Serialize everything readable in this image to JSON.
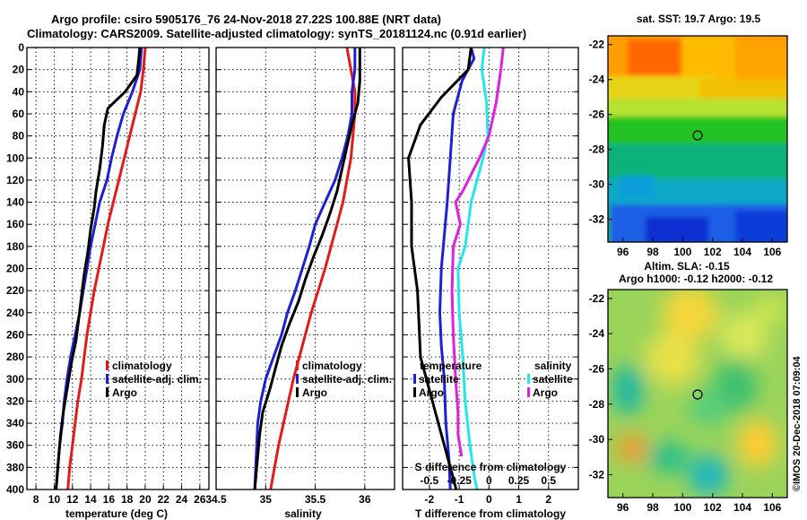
{
  "header": {
    "title_line1": "Argo profile: csiro 5905176_76 24-Nov-2018 27.22S 100.88E (NRT data)",
    "title_line2": "Climatology: CARS2009. Satellite-adjusted climatology: synTS_20181124.nc (0.91d earlier)"
  },
  "colors": {
    "climatology": "#e41a1c",
    "satellite": "#1f1fd6",
    "argo": "#000000",
    "satellite_salinity": "#22e6ee",
    "argo_salinity": "#dd22dd"
  },
  "depth_ticks": [
    "0",
    "20",
    "40",
    "60",
    "80",
    "100",
    "120",
    "140",
    "160",
    "180",
    "200",
    "220",
    "240",
    "260",
    "280",
    "300",
    "320",
    "340",
    "360",
    "380",
    "400"
  ],
  "chart_data": [
    {
      "type": "line",
      "name": "temperature-profile",
      "xlabel": "temperature (deg C)",
      "ylabel": "depth",
      "xlim": [
        7,
        27
      ],
      "ylim": [
        400,
        0
      ],
      "xticks": [
        8,
        10,
        12,
        14,
        16,
        18,
        20,
        22,
        24,
        26
      ],
      "xtick_labels": [
        "8",
        "10",
        "12",
        "14",
        "16",
        "18",
        "20",
        "22",
        "24",
        "26"
      ],
      "legend": [
        "climatology",
        "satellite-adj. clim.",
        "Argo"
      ],
      "series": [
        {
          "name": "climatology",
          "color": "#e41a1c",
          "points": [
            [
              20.0,
              0
            ],
            [
              19.8,
              20
            ],
            [
              19.5,
              40
            ],
            [
              18.9,
              60
            ],
            [
              18.3,
              80
            ],
            [
              17.7,
              100
            ],
            [
              17.1,
              120
            ],
            [
              16.5,
              140
            ],
            [
              15.9,
              160
            ],
            [
              15.4,
              180
            ],
            [
              14.9,
              200
            ],
            [
              14.4,
              220
            ],
            [
              14.0,
              240
            ],
            [
              13.6,
              260
            ],
            [
              13.3,
              280
            ],
            [
              13.0,
              300
            ],
            [
              12.6,
              320
            ],
            [
              12.3,
              340
            ],
            [
              12.0,
              360
            ],
            [
              11.7,
              380
            ],
            [
              11.5,
              400
            ]
          ]
        },
        {
          "name": "satellite-adj. clim.",
          "color": "#1f1fd6",
          "points": [
            [
              19.6,
              0
            ],
            [
              19.4,
              20
            ],
            [
              18.6,
              40
            ],
            [
              17.6,
              60
            ],
            [
              16.9,
              80
            ],
            [
              16.3,
              100
            ],
            [
              15.8,
              120
            ],
            [
              15.0,
              140
            ],
            [
              14.5,
              160
            ],
            [
              14.0,
              180
            ],
            [
              13.6,
              200
            ],
            [
              13.2,
              220
            ],
            [
              12.8,
              240
            ],
            [
              12.3,
              260
            ],
            [
              11.8,
              280
            ],
            [
              11.4,
              300
            ],
            [
              11.1,
              320
            ],
            [
              10.9,
              340
            ],
            [
              10.6,
              360
            ],
            [
              10.4,
              380
            ],
            [
              10.2,
              400
            ]
          ]
        },
        {
          "name": "Argo",
          "color": "#000000",
          "points": [
            [
              19.4,
              0
            ],
            [
              19.3,
              10
            ],
            [
              19.1,
              25
            ],
            [
              17.8,
              40
            ],
            [
              15.9,
              55
            ],
            [
              15.5,
              70
            ],
            [
              15.3,
              90
            ],
            [
              15.0,
              110
            ],
            [
              14.6,
              130
            ],
            [
              14.4,
              145
            ],
            [
              14.0,
              165
            ],
            [
              13.7,
              185
            ],
            [
              13.3,
              205
            ],
            [
              13.0,
              225
            ],
            [
              12.7,
              245
            ],
            [
              12.4,
              265
            ],
            [
              11.9,
              285
            ],
            [
              11.5,
              305
            ],
            [
              11.0,
              330
            ],
            [
              10.7,
              350
            ],
            [
              10.5,
              370
            ],
            [
              10.3,
              390
            ],
            [
              10.2,
              400
            ]
          ]
        }
      ]
    },
    {
      "type": "line",
      "name": "salinity-profile",
      "xlabel": "salinity",
      "ylabel": "depth",
      "xlim": [
        34.5,
        36.3
      ],
      "ylim": [
        400,
        0
      ],
      "xticks": [
        34.5,
        35,
        35.5,
        36
      ],
      "xtick_labels": [
        "34.5",
        "35",
        "35.5",
        "36"
      ],
      "legend": [
        "climatology",
        "satellite-adj. clim.",
        "Argo"
      ],
      "series": [
        {
          "name": "climatology",
          "color": "#e41a1c",
          "points": [
            [
              35.82,
              0
            ],
            [
              35.86,
              20
            ],
            [
              35.9,
              40
            ],
            [
              35.9,
              60
            ],
            [
              35.88,
              80
            ],
            [
              35.86,
              100
            ],
            [
              35.82,
              120
            ],
            [
              35.78,
              140
            ],
            [
              35.72,
              160
            ],
            [
              35.66,
              180
            ],
            [
              35.6,
              200
            ],
            [
              35.53,
              220
            ],
            [
              35.46,
              240
            ],
            [
              35.4,
              260
            ],
            [
              35.34,
              280
            ],
            [
              35.28,
              300
            ],
            [
              35.23,
              320
            ],
            [
              35.18,
              340
            ],
            [
              35.13,
              360
            ],
            [
              35.09,
              380
            ],
            [
              35.05,
              400
            ]
          ]
        },
        {
          "name": "satellite-adj. clim.",
          "color": "#1f1fd6",
          "points": [
            [
              35.9,
              0
            ],
            [
              35.9,
              20
            ],
            [
              35.87,
              40
            ],
            [
              35.87,
              60
            ],
            [
              35.83,
              80
            ],
            [
              35.77,
              100
            ],
            [
              35.7,
              120
            ],
            [
              35.6,
              140
            ],
            [
              35.5,
              160
            ],
            [
              35.44,
              180
            ],
            [
              35.37,
              200
            ],
            [
              35.3,
              220
            ],
            [
              35.22,
              240
            ],
            [
              35.16,
              260
            ],
            [
              35.08,
              280
            ],
            [
              35.0,
              300
            ],
            [
              34.95,
              320
            ],
            [
              34.92,
              340
            ],
            [
              34.91,
              360
            ],
            [
              34.9,
              380
            ],
            [
              34.89,
              400
            ]
          ]
        },
        {
          "name": "Argo",
          "color": "#000000",
          "points": [
            [
              35.95,
              0
            ],
            [
              35.95,
              30
            ],
            [
              35.93,
              50
            ],
            [
              35.87,
              70
            ],
            [
              35.82,
              90
            ],
            [
              35.77,
              110
            ],
            [
              35.72,
              130
            ],
            [
              35.65,
              150
            ],
            [
              35.57,
              170
            ],
            [
              35.48,
              190
            ],
            [
              35.4,
              210
            ],
            [
              35.33,
              230
            ],
            [
              35.24,
              250
            ],
            [
              35.16,
              270
            ],
            [
              35.1,
              290
            ],
            [
              35.04,
              310
            ],
            [
              34.97,
              330
            ],
            [
              34.94,
              350
            ],
            [
              34.92,
              370
            ],
            [
              34.9,
              390
            ],
            [
              34.89,
              400
            ]
          ]
        }
      ]
    },
    {
      "type": "line",
      "name": "difference-profile",
      "xlabel": "T difference from climatology",
      "xlabel_top": "S difference from climatology",
      "xlim": [
        -2.9,
        3.0
      ],
      "ylim": [
        400,
        0
      ],
      "xticks": [
        -2,
        -1,
        0,
        1,
        2
      ],
      "xtick_labels": [
        "-2",
        "-1",
        "0",
        "1",
        "2"
      ],
      "xticks_top": [
        -0.5,
        -0.25,
        0,
        0.25,
        0.5
      ],
      "xtick_labels_top": [
        "-0.5",
        "-0.25",
        "0",
        "0.25",
        "0.5"
      ],
      "legend": {
        "temperature_heading": "temperature",
        "salinity_heading": "salinity",
        "satellite": "satellite",
        "argo": "Argo"
      },
      "series": [
        {
          "name": "temperature satellite",
          "color": "#1f1fd6",
          "points": [
            [
              -0.6,
              0
            ],
            [
              -0.5,
              10
            ],
            [
              -0.9,
              30
            ],
            [
              -1.2,
              60
            ],
            [
              -1.3,
              100
            ],
            [
              -1.4,
              140
            ],
            [
              -1.5,
              170
            ],
            [
              -1.6,
              200
            ],
            [
              -1.65,
              240
            ],
            [
              -1.6,
              270
            ],
            [
              -1.5,
              300
            ],
            [
              -1.45,
              340
            ],
            [
              -1.35,
              370
            ],
            [
              -1.3,
              400
            ]
          ]
        },
        {
          "name": "temperature Argo",
          "color": "#000000",
          "points": [
            [
              -0.6,
              0
            ],
            [
              -0.7,
              20
            ],
            [
              -1.6,
              45
            ],
            [
              -2.3,
              70
            ],
            [
              -2.7,
              100
            ],
            [
              -2.6,
              140
            ],
            [
              -2.6,
              180
            ],
            [
              -2.4,
              220
            ],
            [
              -2.35,
              250
            ],
            [
              -2.3,
              280
            ],
            [
              -2.1,
              300
            ],
            [
              -1.9,
              320
            ],
            [
              -1.6,
              350
            ],
            [
              -1.3,
              380
            ],
            [
              -1.1,
              400
            ]
          ]
        },
        {
          "name": "salinity satellite",
          "color": "#22e6ee",
          "points": [
            [
              -0.04,
              0
            ],
            [
              -0.06,
              20
            ],
            [
              -0.02,
              50
            ],
            [
              -0.01,
              80
            ],
            [
              -0.05,
              100
            ],
            [
              -0.15,
              140
            ],
            [
              -0.2,
              180
            ],
            [
              -0.26,
              200
            ],
            [
              -0.25,
              240
            ],
            [
              -0.22,
              280
            ],
            [
              -0.2,
              320
            ],
            [
              -0.16,
              360
            ],
            [
              -0.12,
              390
            ],
            [
              -0.1,
              400
            ]
          ]
        },
        {
          "name": "salinity Argo",
          "color": "#dd22dd",
          "points": [
            [
              0.12,
              0
            ],
            [
              0.1,
              20
            ],
            [
              0.06,
              50
            ],
            [
              0.0,
              80
            ],
            [
              -0.08,
              100
            ],
            [
              -0.22,
              130
            ],
            [
              -0.28,
              140
            ],
            [
              -0.24,
              160
            ],
            [
              -0.3,
              180
            ],
            [
              -0.31,
              220
            ],
            [
              -0.3,
              260
            ],
            [
              -0.28,
              300
            ],
            [
              -0.26,
              330
            ],
            [
              -0.26,
              350
            ],
            [
              -0.23,
              370
            ]
          ]
        }
      ]
    },
    {
      "type": "heatmap",
      "name": "sst-map",
      "title": "sat. SST: 19.7 Argo: 19.5",
      "xticks": [
        "96",
        "98",
        "100",
        "102",
        "104",
        "106"
      ],
      "yticks": [
        "-22",
        "-24",
        "-26",
        "-28",
        "-30",
        "-32"
      ],
      "marker": [
        100.88,
        -27.22
      ]
    },
    {
      "type": "heatmap",
      "name": "sla-map",
      "title_line1": "Altim. SLA: -0.15",
      "title_line2": "Argo h1000: -0.12 h2000: -0.12",
      "xticks": [
        "96",
        "98",
        "100",
        "102",
        "104",
        "106"
      ],
      "yticks": [
        "-22",
        "-24",
        "-26",
        "-28",
        "-30",
        "-32"
      ],
      "marker": [
        100.88,
        -27.22
      ]
    }
  ],
  "footer": {
    "stamp": "©IMOS 20-Dec-2018 07:09:04"
  }
}
